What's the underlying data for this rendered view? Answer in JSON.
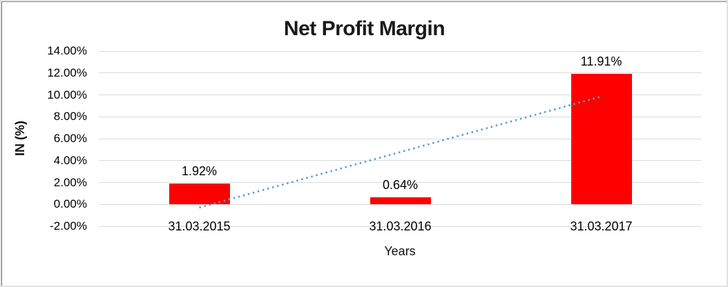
{
  "chart_data": {
    "type": "bar",
    "title": "Net Profit Margin",
    "xlabel": "Years",
    "ylabel": "IN (%)",
    "categories": [
      "31.03.2015",
      "31.03.2016",
      "31.03.2017"
    ],
    "series": [
      {
        "name": "Net Profit Margin",
        "values": [
          1.92,
          0.64,
          11.91
        ],
        "color": "#ff0000"
      }
    ],
    "data_labels": [
      "1.92%",
      "0.64%",
      "11.91%"
    ],
    "ylim": [
      -2,
      14
    ],
    "yticks": [
      {
        "label": "14.00%",
        "value": 14
      },
      {
        "label": "12.00%",
        "value": 12
      },
      {
        "label": "10.00%",
        "value": 10
      },
      {
        "label": "8.00%",
        "value": 8
      },
      {
        "label": "6.00%",
        "value": 6
      },
      {
        "label": "4.00%",
        "value": 4
      },
      {
        "label": "2.00%",
        "value": 2
      },
      {
        "label": "0.00%",
        "value": 0
      },
      {
        "label": "-2.00%",
        "value": -2
      }
    ],
    "grid": true,
    "gridline_color": "#d9d9d9",
    "legend": "none",
    "trendline": {
      "type": "linear",
      "style": "dotted",
      "color": "#5b9bd5",
      "start_value": -0.3,
      "end_value": 9.85
    }
  }
}
